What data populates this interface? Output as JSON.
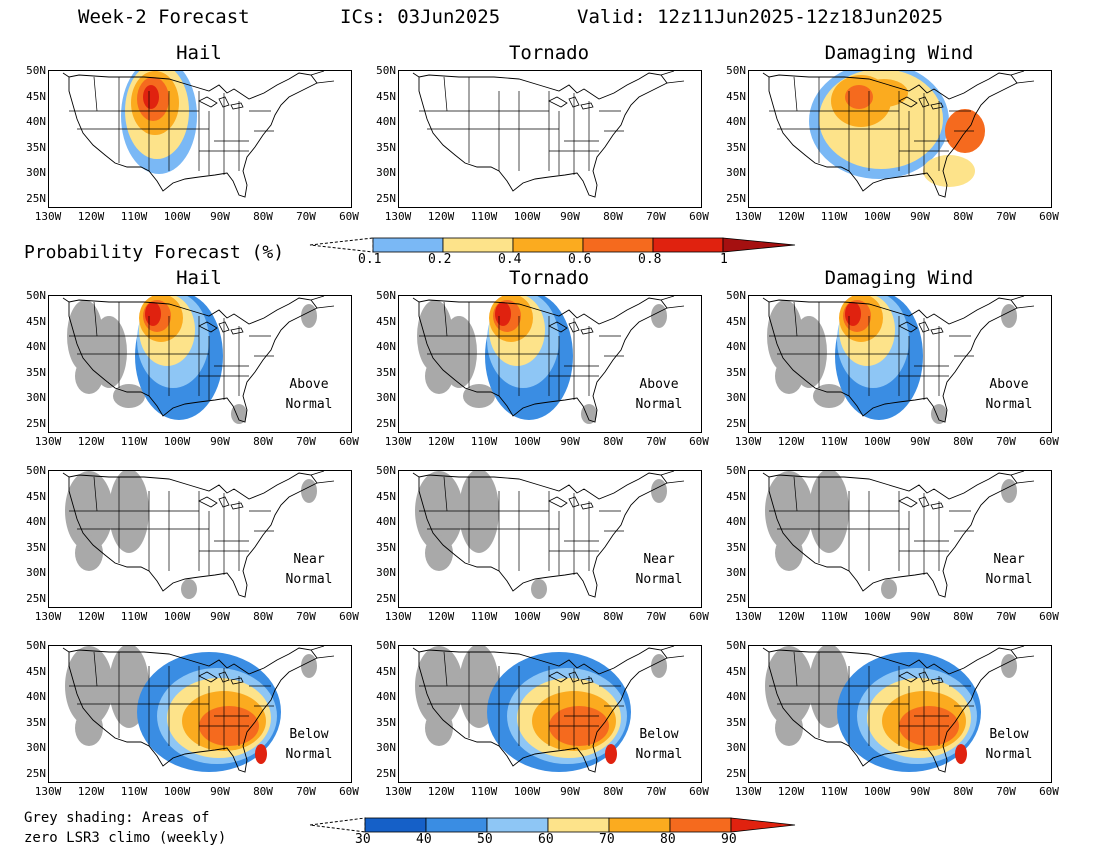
{
  "header": {
    "title": "Week-2 Forecast",
    "ics": "ICs: 03Jun2025",
    "valid": "Valid: 12z11Jun2025-12z18Jun2025"
  },
  "top_row": {
    "titles": [
      "Hail",
      "Tornado",
      "Damaging Wind"
    ]
  },
  "probability_bar": {
    "title": "Probability Forecast (%)",
    "ticks": [
      "0.1",
      "0.2",
      "0.4",
      "0.6",
      "0.8",
      "1"
    ],
    "colors": [
      "#7ab8f5",
      "#fde38a",
      "#fbab1f",
      "#f56a1e",
      "#e0220f",
      "#a51010"
    ]
  },
  "bottom_section": {
    "titles": [
      "Hail",
      "Tornado",
      "Damaging Wind"
    ],
    "row_labels": [
      [
        "Above",
        "Normal"
      ],
      [
        "Near",
        "Normal"
      ],
      [
        "Below",
        "Normal"
      ]
    ]
  },
  "percent_bar": {
    "ticks": [
      "30",
      "40",
      "50",
      "60",
      "70",
      "80",
      "90"
    ],
    "colors": [
      "#1560c8",
      "#3a8de3",
      "#8ec6f5",
      "#fde38a",
      "#fbab1f",
      "#f56a1e",
      "#e0220f"
    ]
  },
  "grey_note": "Grey shading: Areas of\nzero LSR3 climo (weekly)",
  "axes": {
    "lat_labels": [
      "50N",
      "45N",
      "40N",
      "35N",
      "30N",
      "25N"
    ],
    "lon_labels": [
      "130W",
      "120W",
      "110W",
      "100W",
      "90W",
      "80W",
      "70W",
      "60W"
    ]
  },
  "colors": {
    "grey": "#a9a9a9",
    "blue": "#3a8de3",
    "light_blue": "#7ab8f5",
    "yellow": "#fde38a",
    "orange": "#fbab1f",
    "dark_orange": "#f56a1e",
    "red": "#e0220f"
  }
}
